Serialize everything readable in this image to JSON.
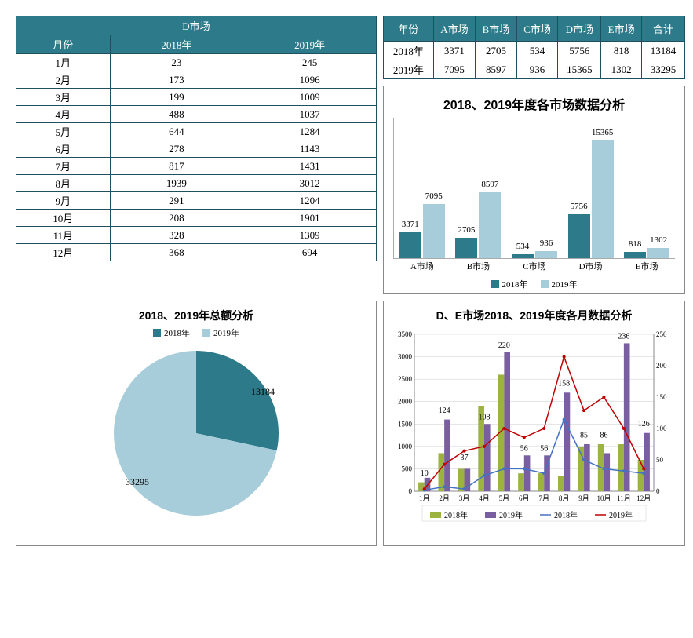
{
  "colors": {
    "header_bg": "#2d7a8a",
    "header_text": "#ffffff",
    "border": "#1f5060",
    "series_2018_dark": "#2d7a8a",
    "series_2019_light": "#a6cdd9",
    "bar_olive": "#9cb340",
    "bar_purple": "#7a5fa0",
    "line_blue": "#4472c4",
    "line_red": "#c00000",
    "grid": "#cccccc"
  },
  "table1": {
    "headers": [
      "年份",
      "A市场",
      "B市场",
      "C市场",
      "D市场",
      "E市场",
      "合计"
    ],
    "rows": [
      [
        "2018年",
        "3371",
        "2705",
        "534",
        "5756",
        "818",
        "13184"
      ],
      [
        "2019年",
        "7095",
        "8597",
        "936",
        "15365",
        "1302",
        "33295"
      ]
    ]
  },
  "table2": {
    "title": "D市场",
    "headers": [
      "月份",
      "2018年",
      "2019年"
    ],
    "rows": [
      [
        "1月",
        "23",
        "245"
      ],
      [
        "2月",
        "173",
        "1096"
      ],
      [
        "3月",
        "199",
        "1009"
      ],
      [
        "4月",
        "488",
        "1037"
      ],
      [
        "5月",
        "644",
        "1284"
      ],
      [
        "6月",
        "278",
        "1143"
      ],
      [
        "7月",
        "817",
        "1431"
      ],
      [
        "8月",
        "1939",
        "3012"
      ],
      [
        "9月",
        "291",
        "1204"
      ],
      [
        "10月",
        "208",
        "1901"
      ],
      [
        "11月",
        "328",
        "1309"
      ],
      [
        "12月",
        "368",
        "694"
      ]
    ]
  },
  "barChart": {
    "title": "2018、2019年度各市场数据分析",
    "categories": [
      "A市场",
      "B市场",
      "C市场",
      "D市场",
      "E市场"
    ],
    "series": [
      {
        "name": "2018年",
        "color": "#2d7a8a",
        "values": [
          3371,
          2705,
          534,
          5756,
          818
        ]
      },
      {
        "name": "2019年",
        "color": "#a6cdd9",
        "values": [
          7095,
          8597,
          936,
          15365,
          1302
        ]
      }
    ],
    "ymax": 15365
  },
  "pieChart": {
    "title": "2018、2019年总额分析",
    "legend": [
      "2018年",
      "2019年"
    ],
    "slices": [
      {
        "label": "13184",
        "value": 13184,
        "color": "#2d7a8a"
      },
      {
        "label": "33295",
        "value": 33295,
        "color": "#a6cdd9"
      }
    ]
  },
  "comboChart": {
    "title": "D、E市场2018、2019年度各月数据分析",
    "months": [
      "1月",
      "2月",
      "3月",
      "4月",
      "5月",
      "6月",
      "7月",
      "8月",
      "9月",
      "10月",
      "11月",
      "12月"
    ],
    "left_ymax": 3500,
    "left_ystep": 500,
    "right_ymax": 250,
    "right_ystep": 50,
    "bars_2018": [
      200,
      850,
      500,
      1900,
      2600,
      400,
      400,
      350,
      1000,
      1050,
      1050,
      700
    ],
    "bars_2019": [
      300,
      1600,
      500,
      1500,
      3100,
      800,
      800,
      2200,
      1050,
      850,
      3300,
      1300
    ],
    "line_2018": [
      25,
      100,
      50,
      350,
      500,
      500,
      400,
      1600,
      700,
      500,
      450,
      400
    ],
    "line_2019": [
      50,
      600,
      900,
      1000,
      1400,
      1200,
      1400,
      3000,
      1800,
      2100,
      1400,
      500
    ],
    "data_labels": [
      {
        "x": 1,
        "y": 350,
        "text": "10"
      },
      {
        "x": 2,
        "y": 1750,
        "text": "124"
      },
      {
        "x": 3,
        "y": 700,
        "text": "37"
      },
      {
        "x": 4,
        "y": 1600,
        "text": "108"
      },
      {
        "x": 5,
        "y": 3200,
        "text": "220"
      },
      {
        "x": 6,
        "y": 900,
        "text": "56"
      },
      {
        "x": 7,
        "y": 900,
        "text": "56"
      },
      {
        "x": 8,
        "y": 2350,
        "text": "158"
      },
      {
        "x": 9,
        "y": 1200,
        "text": "85"
      },
      {
        "x": 10,
        "y": 1200,
        "text": "86"
      },
      {
        "x": 11,
        "y": 3400,
        "text": "236"
      },
      {
        "x": 12,
        "y": 1450,
        "text": "126"
      }
    ],
    "legend": [
      {
        "name": "2018年",
        "type": "bar",
        "color": "#9cb340"
      },
      {
        "name": "2019年",
        "type": "bar",
        "color": "#7a5fa0"
      },
      {
        "name": "2018年",
        "type": "line",
        "color": "#4472c4"
      },
      {
        "name": "2019年",
        "type": "line",
        "color": "#c00000"
      }
    ]
  }
}
